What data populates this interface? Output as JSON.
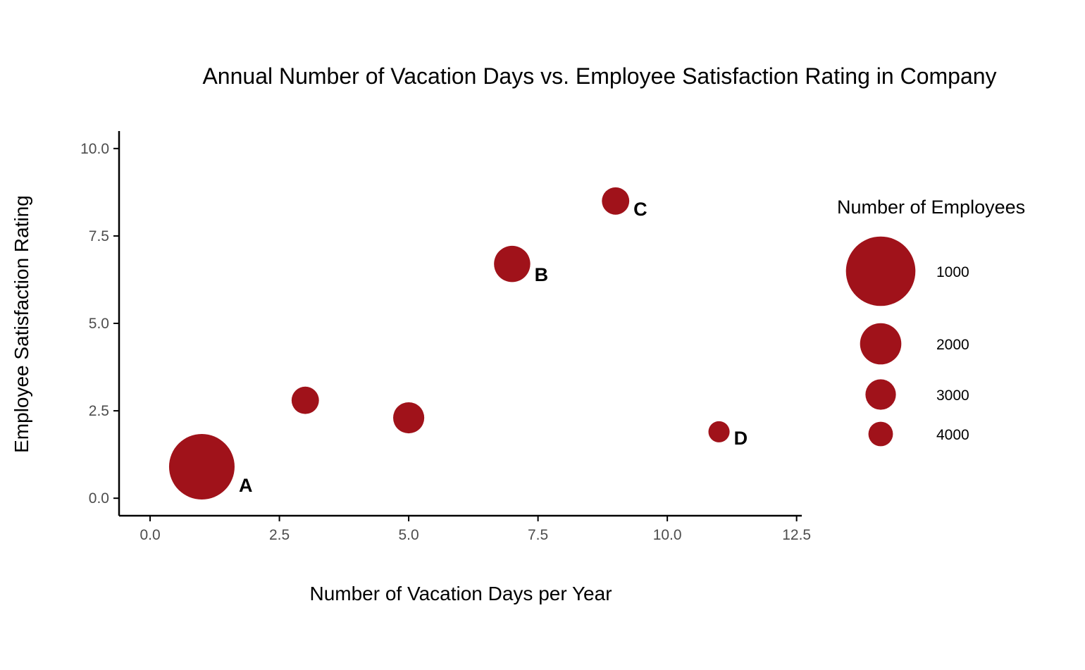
{
  "chart_data": {
    "type": "scatter",
    "title": "Annual Number of Vacation Days vs. Employee Satisfaction Rating in Company",
    "xlabel": "Number of Vacation Days per Year",
    "ylabel": "Employee Satisfaction Rating",
    "xlim": [
      -0.6,
      12.6
    ],
    "ylim": [
      -0.5,
      10.5
    ],
    "xticks": [
      "0.0",
      "2.5",
      "5.0",
      "7.5",
      "10.0",
      "12.5"
    ],
    "xtick_values": [
      0,
      2.5,
      5,
      7.5,
      10,
      12.5
    ],
    "yticks": [
      "0.0",
      "2.5",
      "5.0",
      "7.5",
      "10.0"
    ],
    "ytick_values": [
      0,
      2.5,
      5,
      7.5,
      10
    ],
    "grid": false,
    "legend_placement": "right",
    "legend_title": "Number of Employees",
    "legend_entries": [
      {
        "label": "1000",
        "value": 1000
      },
      {
        "label": "2000",
        "value": 2000
      },
      {
        "label": "3000",
        "value": 3000
      },
      {
        "label": "4000",
        "value": 4000
      }
    ],
    "marker_color": "#a0121a",
    "points": [
      {
        "x": 1,
        "y": 0.9,
        "employees": 1000,
        "label": "A"
      },
      {
        "x": 3,
        "y": 2.8,
        "employees": 3200,
        "label": ""
      },
      {
        "x": 5,
        "y": 2.3,
        "employees": 2700,
        "label": ""
      },
      {
        "x": 7,
        "y": 6.7,
        "employees": 2200,
        "label": "B"
      },
      {
        "x": 9,
        "y": 8.5,
        "employees": 3200,
        "label": "C"
      },
      {
        "x": 11,
        "y": 1.9,
        "employees": 4500,
        "label": "D"
      }
    ]
  }
}
